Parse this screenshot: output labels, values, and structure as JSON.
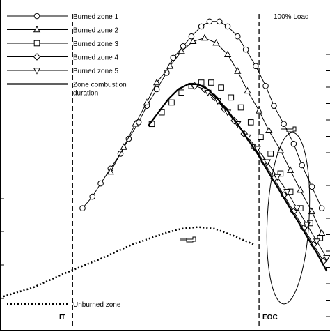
{
  "chart_data": {
    "type": "line",
    "title": "",
    "xlabel": "",
    "ylabel": "",
    "xlim": [
      0,
      100
    ],
    "ylim": [
      0,
      100
    ],
    "grid": false,
    "legend_position": "top-left",
    "annotations": {
      "load": "100% Load",
      "it": "IT",
      "eoc": "EOC",
      "unburned_zone": "Unburned zone"
    },
    "vertical_markers": [
      {
        "label_key": "it",
        "x": 22
      },
      {
        "label_key": "eoc",
        "x": 78.5
      }
    ],
    "series": [
      {
        "name": "Burned zone 1",
        "marker": "circle",
        "line": "thin",
        "x": [
          25,
          28,
          30.5,
          33.5,
          36.5,
          39,
          42,
          44.5,
          47.5,
          50.5,
          52.5,
          55.5,
          58,
          61,
          63.5,
          66.5,
          69,
          72,
          74.5,
          77.5,
          80.5,
          83,
          86,
          89,
          91.5,
          94.5,
          97.5
        ],
        "y": [
          37,
          40.5,
          44.5,
          49,
          53.5,
          58,
          63,
          68,
          73,
          78,
          82.5,
          86,
          89,
          92,
          93.5,
          93.5,
          92,
          89,
          85,
          80,
          74,
          68,
          62.5,
          56.5,
          50,
          43.5,
          37
        ]
      },
      {
        "name": "Burned zone 2",
        "marker": "triangle-up",
        "line": "thin",
        "x": [
          33.5,
          37.5,
          41,
          44.5,
          47.5,
          51.5,
          55,
          58.5,
          62,
          65.5,
          69,
          72,
          75,
          78.5,
          81.5,
          85,
          88,
          91,
          94.5,
          97.5
        ],
        "y": [
          48,
          55.5,
          62.5,
          69,
          75,
          80,
          84.5,
          87.5,
          88.5,
          87,
          83.5,
          78.5,
          72.5,
          66.5,
          60.5,
          54.5,
          48.5,
          42.5,
          36,
          29.5
        ]
      },
      {
        "name": "Burned zone 3",
        "marker": "square",
        "line": "none",
        "x": [
          46,
          49,
          52,
          55,
          58,
          61,
          64,
          67,
          70,
          73,
          76,
          79,
          82,
          85,
          88,
          91,
          94,
          97
        ],
        "y": [
          62.5,
          66,
          69,
          72,
          74,
          75,
          75,
          73.5,
          70.5,
          67.5,
          63,
          58.5,
          53.5,
          47.5,
          42,
          37,
          32.5,
          28
        ]
      },
      {
        "name": "Burned zone 4",
        "marker": "diamond",
        "line": "thin",
        "x": [
          59,
          62,
          65,
          68,
          71,
          74,
          77,
          80,
          83,
          86,
          89,
          92,
          95,
          98
        ],
        "y": [
          74,
          73,
          70.5,
          67,
          63.5,
          59.5,
          55.5,
          51,
          46,
          41,
          36,
          31,
          26,
          21
        ]
      },
      {
        "name": "Burned zone 5",
        "marker": "triangle-down",
        "line": "thin",
        "x": [
          63,
          66,
          69,
          72,
          75,
          78,
          81,
          84,
          87,
          90,
          93,
          96,
          99
        ],
        "y": [
          72,
          69.5,
          66,
          62.5,
          58.5,
          55,
          51,
          46.5,
          42,
          37,
          32,
          27,
          22
        ]
      },
      {
        "name": "Zone combustion duration",
        "marker": "none",
        "line": "thick",
        "x": [
          45,
          48,
          51,
          54,
          57,
          60,
          63,
          66,
          69,
          72,
          75,
          78,
          81,
          84,
          87,
          90,
          93,
          96,
          99
        ],
        "y": [
          62,
          66,
          70,
          73,
          74.5,
          74.5,
          73,
          70,
          66.5,
          62.5,
          58,
          53.5,
          48.5,
          43.5,
          38.5,
          33.5,
          28.5,
          23.5,
          18
        ]
      },
      {
        "name": "Unburned zone",
        "marker": "none",
        "line": "dotted",
        "x": [
          0,
          10,
          20,
          30,
          40,
          50,
          55,
          60,
          65,
          70,
          77
        ],
        "y": [
          10,
          13,
          17.5,
          21.5,
          26,
          29.5,
          30.8,
          31.3,
          30.8,
          29,
          26
        ]
      }
    ]
  }
}
